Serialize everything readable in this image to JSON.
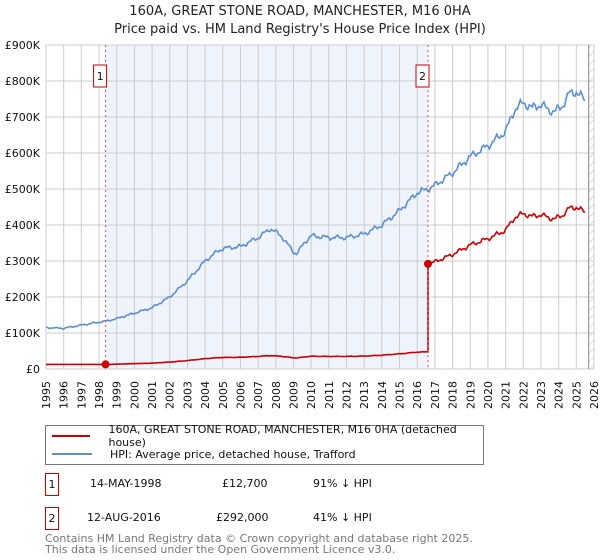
{
  "chart_data": {
    "type": "line",
    "title": "160A, GREAT STONE ROAD, MANCHESTER, M16 0HA",
    "subtitle": "Price paid vs. HM Land Registry's House Price Index (HPI)",
    "xlim": [
      1995,
      2026
    ],
    "ylim": [
      0,
      900000
    ],
    "y_ticks": [
      {
        "v": 0,
        "label": "£0"
      },
      {
        "v": 100000,
        "label": "£100K"
      },
      {
        "v": 200000,
        "label": "£200K"
      },
      {
        "v": 300000,
        "label": "£300K"
      },
      {
        "v": 400000,
        "label": "£400K"
      },
      {
        "v": 500000,
        "label": "£500K"
      },
      {
        "v": 600000,
        "label": "£600K"
      },
      {
        "v": 700000,
        "label": "£700K"
      },
      {
        "v": 800000,
        "label": "£800K"
      },
      {
        "v": 900000,
        "label": "£900K"
      }
    ],
    "x_ticks": [
      "1995",
      "1996",
      "1997",
      "1998",
      "1999",
      "2000",
      "2001",
      "2002",
      "2003",
      "2004",
      "2005",
      "2006",
      "2007",
      "2008",
      "2009",
      "2010",
      "2011",
      "2012",
      "2013",
      "2014",
      "2015",
      "2016",
      "2017",
      "2018",
      "2019",
      "2020",
      "2021",
      "2022",
      "2023",
      "2024",
      "2025",
      "2026"
    ],
    "hpi_series": {
      "name": "HPI: Average price, detached house, Trafford",
      "color": "#5b8fd4",
      "x": [
        1995,
        1996,
        1997,
        1998,
        1998.4,
        1999,
        2000,
        2001,
        2002,
        2003,
        2004,
        2004.5,
        2005,
        2006,
        2007,
        2007.7,
        2008.3,
        2009,
        2009.2,
        2009.6,
        2010,
        2011,
        2012,
        2013,
        2014,
        2015,
        2016,
        2016.6,
        2017,
        2018,
        2019,
        2020,
        2021,
        2021.5,
        2022,
        2022.5,
        2023,
        2023.4,
        2023.8,
        2024.2,
        2024.6,
        2025,
        2025.5
      ],
      "y": [
        115000,
        113000,
        122000,
        130000,
        133000,
        140000,
        155000,
        170000,
        200000,
        245000,
        300000,
        320000,
        335000,
        340000,
        365000,
        390000,
        370000,
        325000,
        320000,
        350000,
        370000,
        365000,
        365000,
        375000,
        400000,
        440000,
        490000,
        500000,
        510000,
        545000,
        590000,
        620000,
        660000,
        720000,
        740000,
        725000,
        735000,
        720000,
        715000,
        730000,
        765000,
        770000,
        745000
      ]
    },
    "property_series": {
      "name": "160A, GREAT STONE ROAD, MANCHESTER, M16 0HA (detached house)",
      "color": "#cc0000"
    },
    "sales": [
      {
        "n": "1",
        "x": 1998.37,
        "date": "14-MAY-1998",
        "price": 12700,
        "price_label": "£12,700",
        "hpi_diff": "91% ↓ HPI"
      },
      {
        "n": "2",
        "x": 2016.61,
        "date": "12-AUG-2016",
        "price": 292000,
        "price_label": "£292,000",
        "hpi_diff": "41% ↓ HPI"
      }
    ],
    "hatch_from": 2025.7
  },
  "footer": {
    "line1": "Contains HM Land Registry data © Crown copyright and database right 2025.",
    "line2": "This data is licensed under the Open Government Licence v3.0."
  }
}
